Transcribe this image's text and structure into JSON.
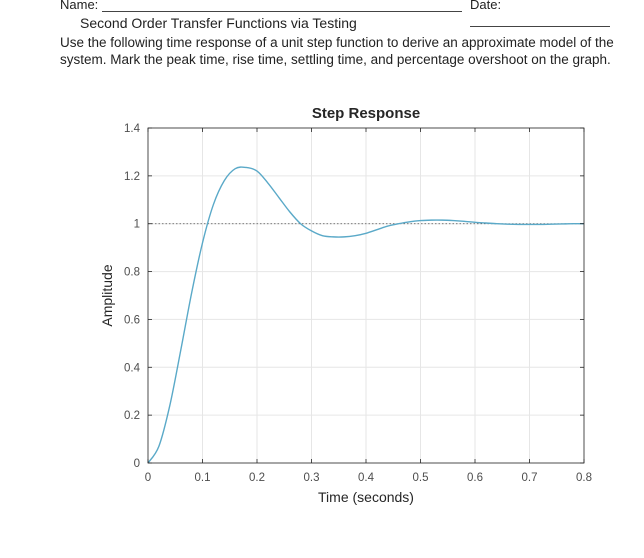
{
  "header": {
    "name_label": "Name:",
    "date_label": "Date:",
    "title": "Second Order Transfer Functions via Testing",
    "instructions": "Use the following time response of a unit step function to derive an approximate model of the system. Mark the peak time, rise time, settling time, and percentage overshoot on the graph."
  },
  "chart_data": {
    "type": "line",
    "title": "Step Response",
    "xlabel": "Time (seconds)",
    "ylabel": "Amplitude",
    "xlim": [
      0,
      0.8
    ],
    "ylim": [
      0,
      1.4
    ],
    "xticks": [
      "0",
      "0.1",
      "0.2",
      "0.3",
      "0.4",
      "0.5",
      "0.6",
      "0.7",
      "0.8"
    ],
    "yticks": [
      "0",
      "0.2",
      "0.4",
      "0.6",
      "0.8",
      "1",
      "1.2",
      "1.4"
    ],
    "grid": true,
    "reference_line": 1,
    "series": [
      {
        "color": "#5aa9c8",
        "x": [
          0,
          0.02,
          0.04,
          0.06,
          0.08,
          0.1,
          0.12,
          0.14,
          0.16,
          0.18,
          0.2,
          0.22,
          0.24,
          0.26,
          0.28,
          0.3,
          0.32,
          0.34,
          0.36,
          0.38,
          0.4,
          0.42,
          0.44,
          0.46,
          0.48,
          0.5,
          0.52,
          0.54,
          0.56,
          0.58,
          0.6,
          0.62,
          0.64,
          0.66,
          0.68,
          0.7,
          0.72,
          0.74,
          0.76,
          0.78,
          0.8
        ],
        "y": [
          0,
          0.07,
          0.24,
          0.47,
          0.71,
          0.92,
          1.08,
          1.18,
          1.23,
          1.235,
          1.22,
          1.17,
          1.11,
          1.05,
          1.0,
          0.97,
          0.95,
          0.945,
          0.945,
          0.95,
          0.96,
          0.975,
          0.99,
          1.0,
          1.008,
          1.013,
          1.015,
          1.015,
          1.013,
          1.01,
          1.006,
          1.003,
          1.0,
          0.998,
          0.997,
          0.997,
          0.997,
          0.998,
          0.999,
          1.0,
          1.0
        ]
      }
    ]
  }
}
